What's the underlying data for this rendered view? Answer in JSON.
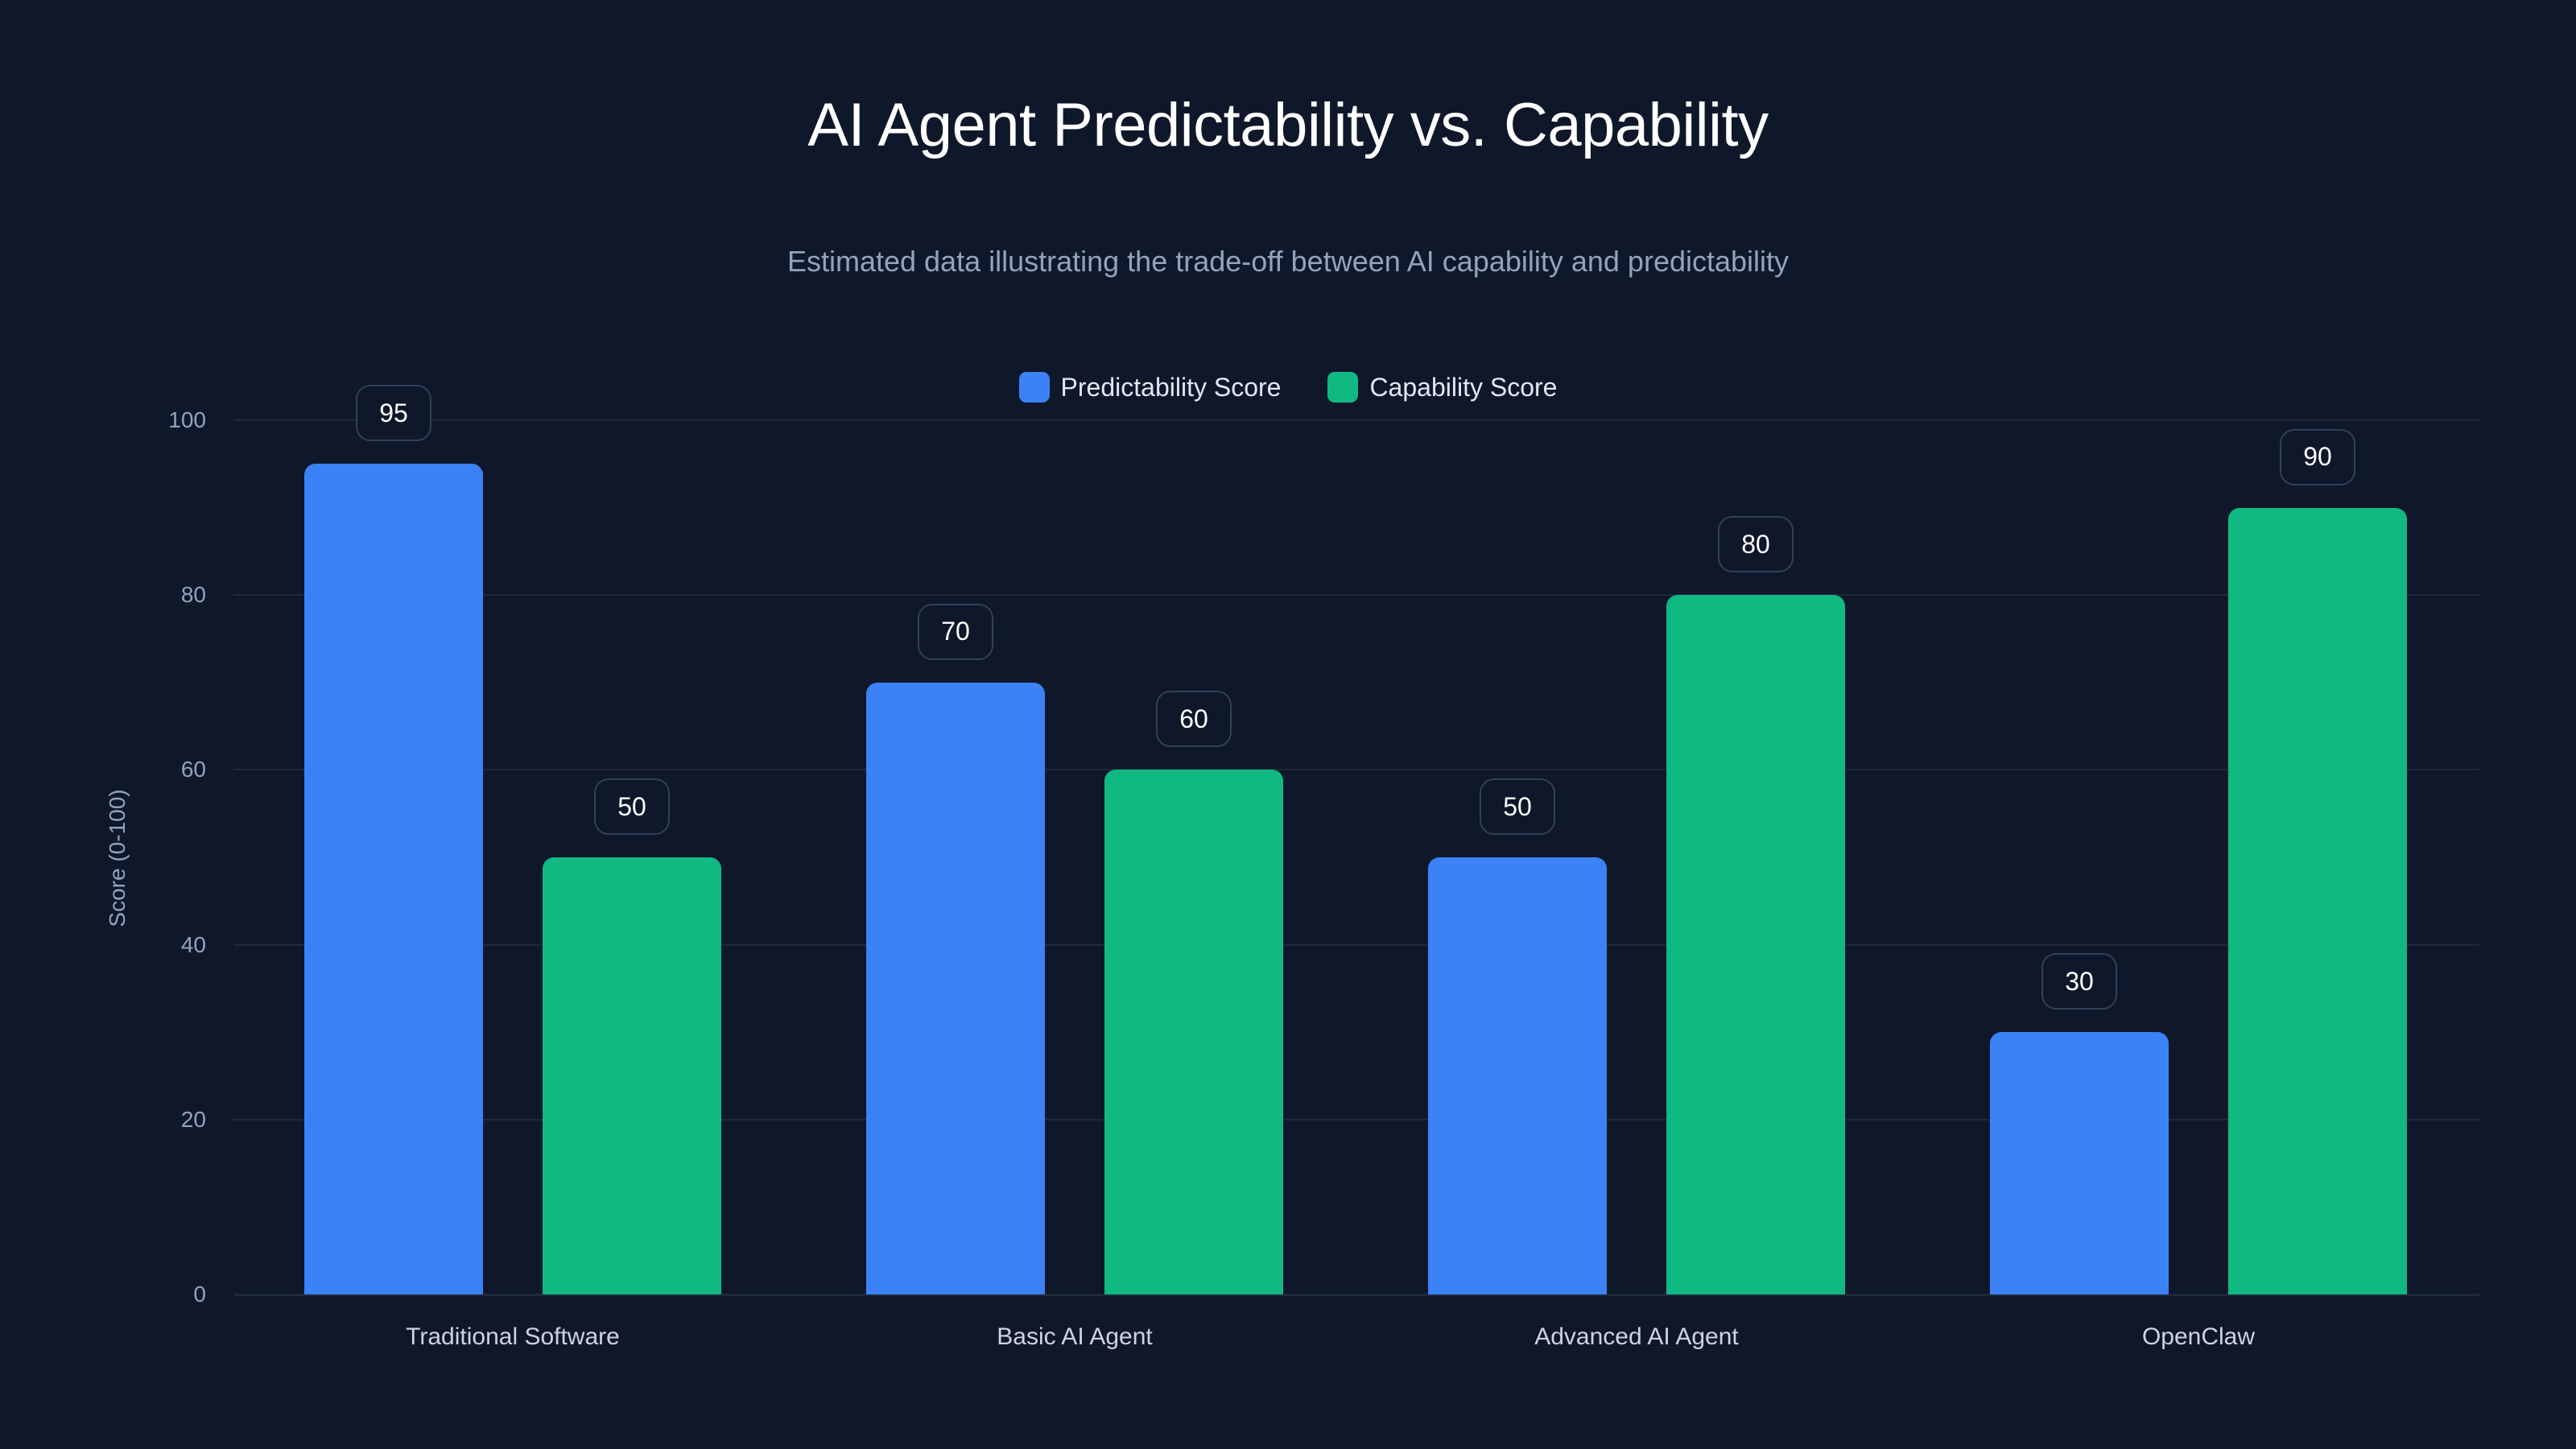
{
  "header": {
    "title": "AI Agent Predictability vs. Capability",
    "subtitle": "Estimated data illustrating the trade-off between AI capability and predictability"
  },
  "legend": [
    {
      "label": "Predictability Score",
      "color": "#3b82f6"
    },
    {
      "label": "Capability Score",
      "color": "#10b981"
    }
  ],
  "axes": {
    "y_label": "Score (0-100)",
    "y_ticks": [
      "0",
      "20",
      "40",
      "60",
      "80",
      "100"
    ]
  },
  "colors": {
    "background": "#0f172a",
    "predictability": "#3b82f6",
    "capability": "#10b981",
    "grid": "#1e293b",
    "label_border": "#334155"
  },
  "chart_data": {
    "type": "bar",
    "title": "AI Agent Predictability vs. Capability",
    "subtitle": "Estimated data illustrating the trade-off between AI capability and predictability",
    "categories": [
      "Traditional Software",
      "Basic AI Agent",
      "Advanced AI Agent",
      "OpenClaw"
    ],
    "series": [
      {
        "name": "Predictability Score",
        "color": "#3b82f6",
        "values": [
          95,
          70,
          50,
          30
        ]
      },
      {
        "name": "Capability Score",
        "color": "#10b981",
        "values": [
          50,
          60,
          80,
          90
        ]
      }
    ],
    "xlabel": "",
    "ylabel": "Score (0-100)",
    "ylim": [
      0,
      100
    ],
    "yticks": [
      0,
      20,
      40,
      60,
      80,
      100
    ],
    "grid": true,
    "legend_position": "top-center",
    "data_labels": true
  }
}
